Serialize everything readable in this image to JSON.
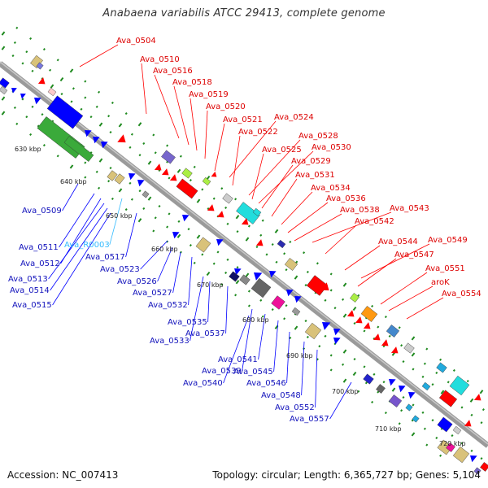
{
  "title": "Anabaena variabilis ATCC 29413, complete genome",
  "footer": {
    "accession": "Accession: NC_007413",
    "stats": "Topology: circular; Length: 6,365,727 bp; Genes: 5,104"
  },
  "colors": {
    "forward": "#ff0000",
    "reverse": "#0000ff",
    "rna": "#33bbff",
    "backbone": "#999999",
    "ticks": "#1f8a1f"
  },
  "scale_labels": [
    "630 kbp",
    "640 kbp",
    "650 kbp",
    "660 kbp",
    "670 kbp",
    "680 kbp",
    "690 kbp",
    "700 kbp",
    "710 kbp",
    "720 kbp"
  ],
  "forward_genes": [
    "Ava_0504",
    "Ava_0510",
    "Ava_0516",
    "Ava_0518",
    "Ava_0519",
    "Ava_0520",
    "Ava_0521",
    "Ava_0524",
    "Ava_0522",
    "Ava_0528",
    "Ava_0525",
    "Ava_0530",
    "Ava_0529",
    "Ava_0531",
    "Ava_0534",
    "Ava_0536",
    "Ava_0538",
    "Ava_0543",
    "Ava_0542",
    "Ava_0544",
    "Ava_0549",
    "Ava_0547",
    "Ava_0551",
    "aroK",
    "Ava_0554"
  ],
  "reverse_genes": [
    "Ava_0509",
    "Ava_0511",
    "Ava_R0003",
    "Ava_0512",
    "Ava_0517",
    "Ava_0513",
    "Ava_0514",
    "Ava_0515",
    "Ava_0523",
    "Ava_0526",
    "Ava_0527",
    "Ava_0532",
    "Ava_0535",
    "Ava_0533",
    "Ava_0537",
    "Ava_0541",
    "Ava_0539",
    "Ava_0545",
    "Ava_0540",
    "Ava_0546",
    "Ava_0548",
    "Ava_0552",
    "Ava_0557"
  ]
}
